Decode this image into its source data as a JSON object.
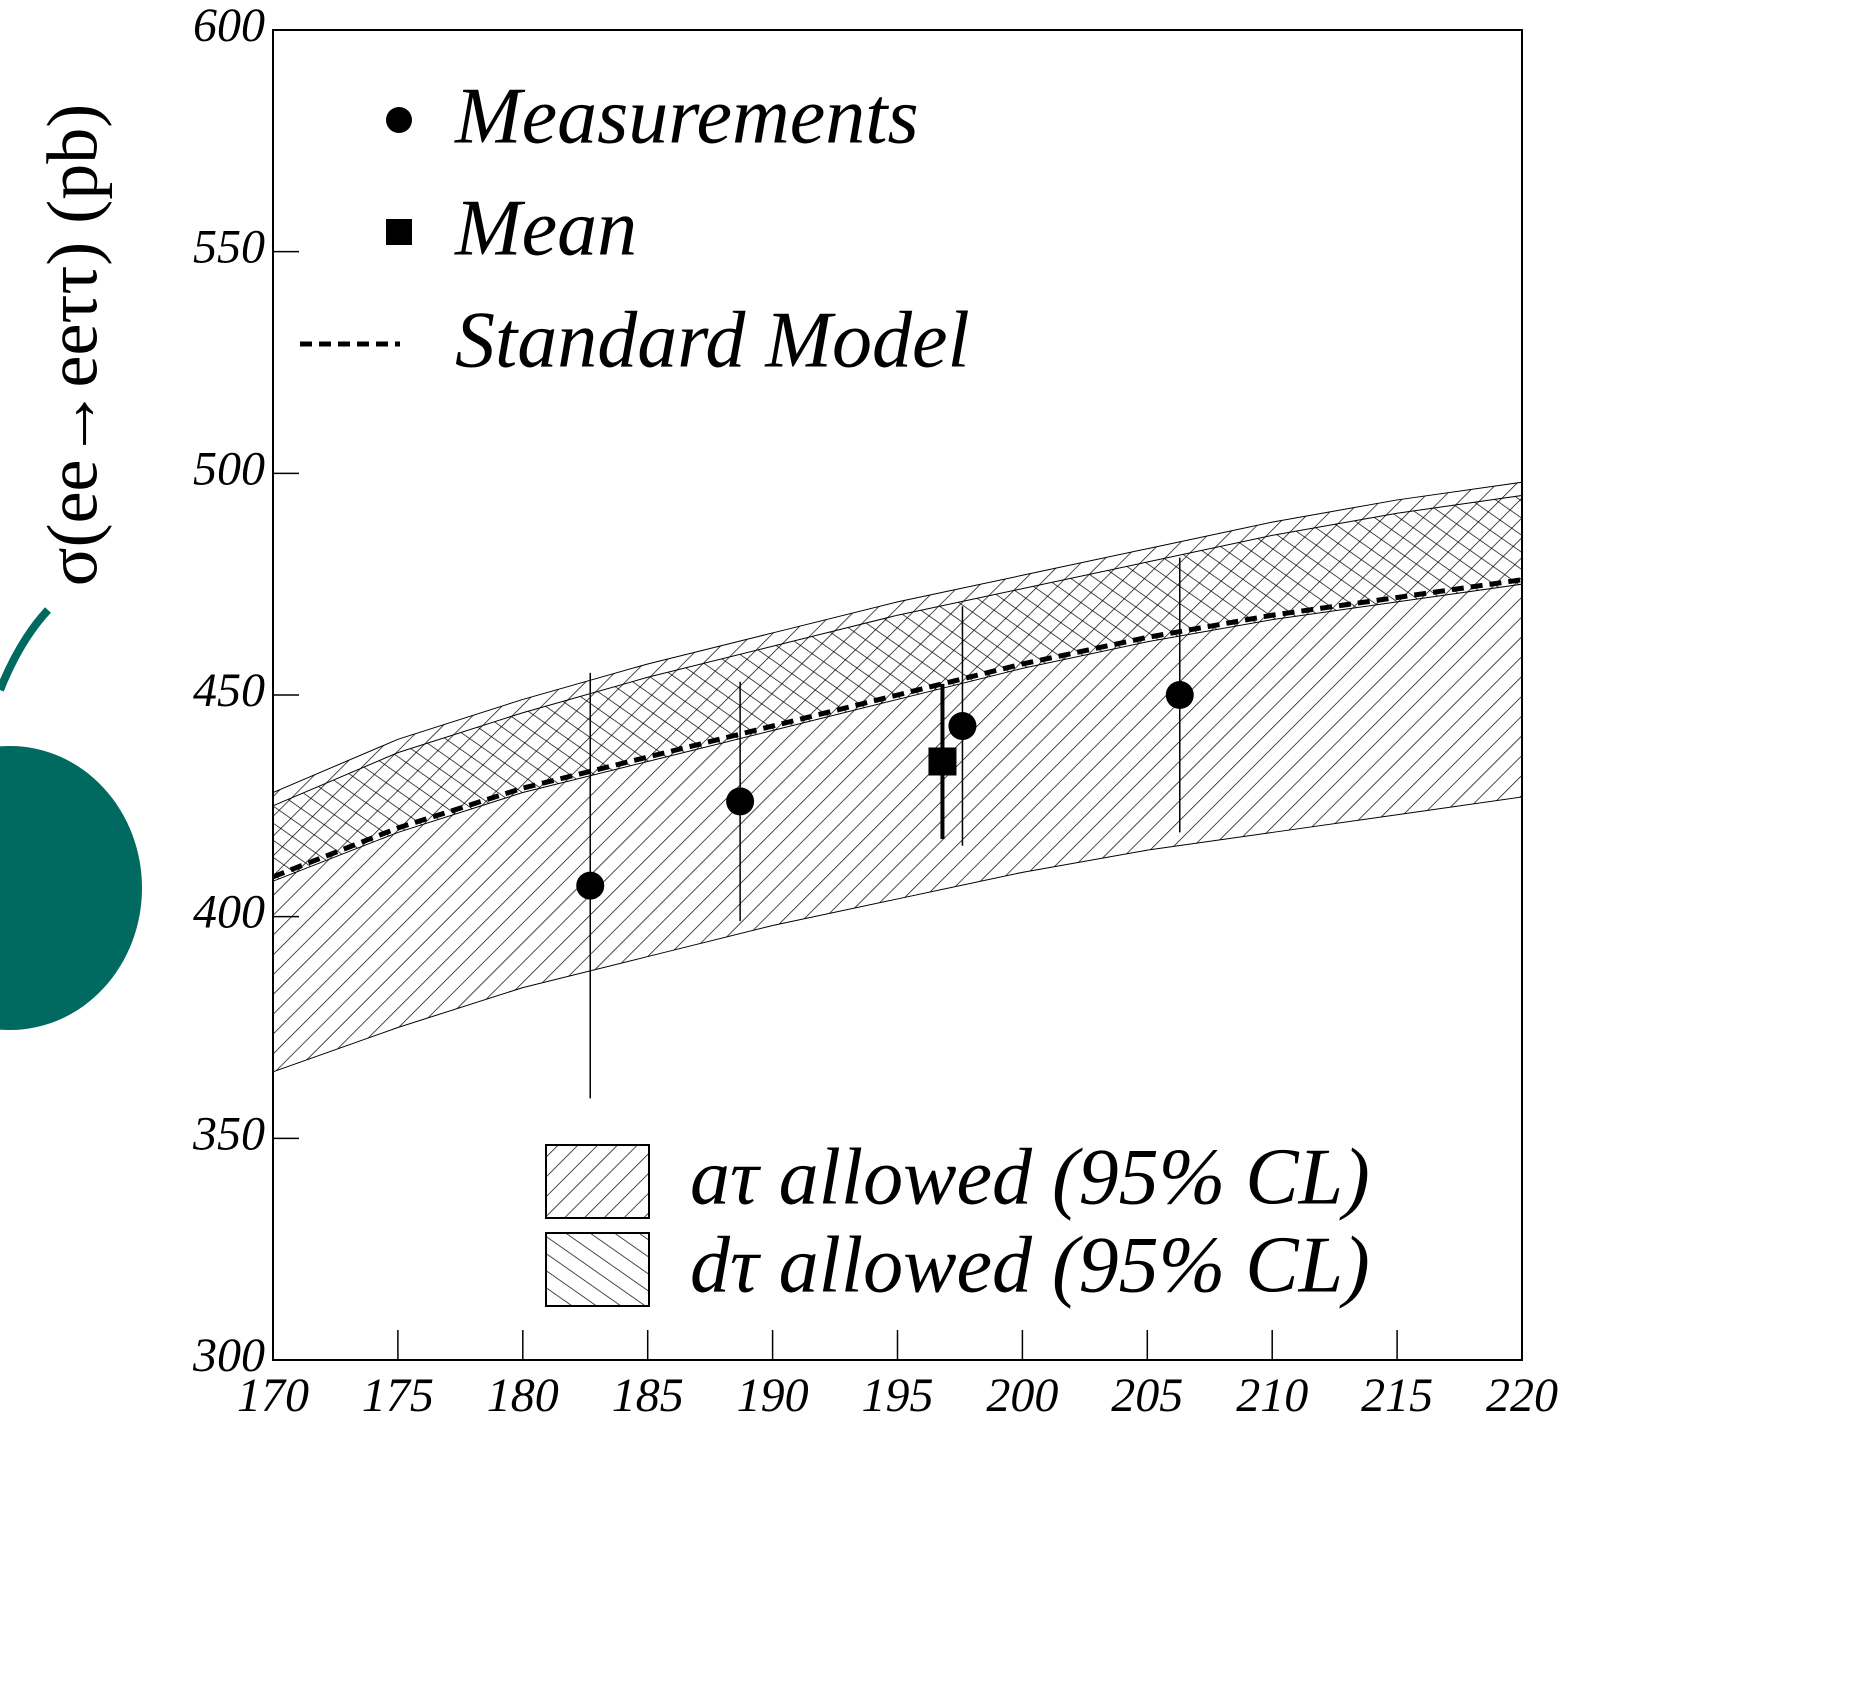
{
  "chart_data": {
    "type": "scatter",
    "y_label": "σ(ee→eeττ) (pb)",
    "xlim": [
      170,
      220
    ],
    "ylim": [
      300,
      600
    ],
    "xticks": [
      170,
      175,
      180,
      185,
      190,
      195,
      200,
      205,
      210,
      215,
      220
    ],
    "yticks": [
      300,
      350,
      400,
      450,
      500,
      550,
      600
    ],
    "series": [
      {
        "name": "Measurements",
        "type": "scatter",
        "marker": "circle",
        "color": "#000000",
        "x": [
          182.7,
          188.7,
          197.6,
          206.3
        ],
        "values": [
          407,
          426,
          443,
          450
        ],
        "errors": [
          48,
          27,
          27,
          31
        ]
      },
      {
        "name": "Mean",
        "type": "scatter",
        "marker": "square",
        "color": "#000000",
        "x": [
          196.8
        ],
        "values": [
          435
        ],
        "errors": [
          17.5
        ]
      },
      {
        "name": "Standard Model",
        "type": "line",
        "dashed": true,
        "color": "#000000",
        "x": [
          170,
          175,
          180,
          185,
          190,
          195,
          200,
          205,
          210,
          215,
          220
        ],
        "values": [
          409,
          420,
          429,
          436,
          443,
          450,
          457,
          463,
          468,
          472,
          476
        ]
      }
    ],
    "bands": [
      {
        "name": "aτ allowed (95% CL)",
        "hatch": "/",
        "color": "#000000",
        "x": [
          170,
          175,
          180,
          185,
          190,
          195,
          200,
          205,
          210,
          215,
          220
        ],
        "lower": [
          365,
          375,
          384,
          391,
          398,
          404,
          410,
          415,
          419,
          423,
          427
        ],
        "upper": [
          428,
          440,
          449,
          457,
          464,
          471,
          477,
          483,
          489,
          494,
          498
        ]
      },
      {
        "name": "dτ allowed (95% CL)",
        "hatch": "\\",
        "color": "#000000",
        "x": [
          170,
          175,
          180,
          185,
          190,
          195,
          200,
          205,
          210,
          215,
          220
        ],
        "lower": [
          408,
          419,
          428,
          435,
          442,
          449,
          456,
          462,
          467,
          471,
          475
        ],
        "upper": [
          425,
          437,
          446,
          454,
          461,
          468,
          474,
          480,
          486,
          491,
          495
        ]
      }
    ]
  }
}
